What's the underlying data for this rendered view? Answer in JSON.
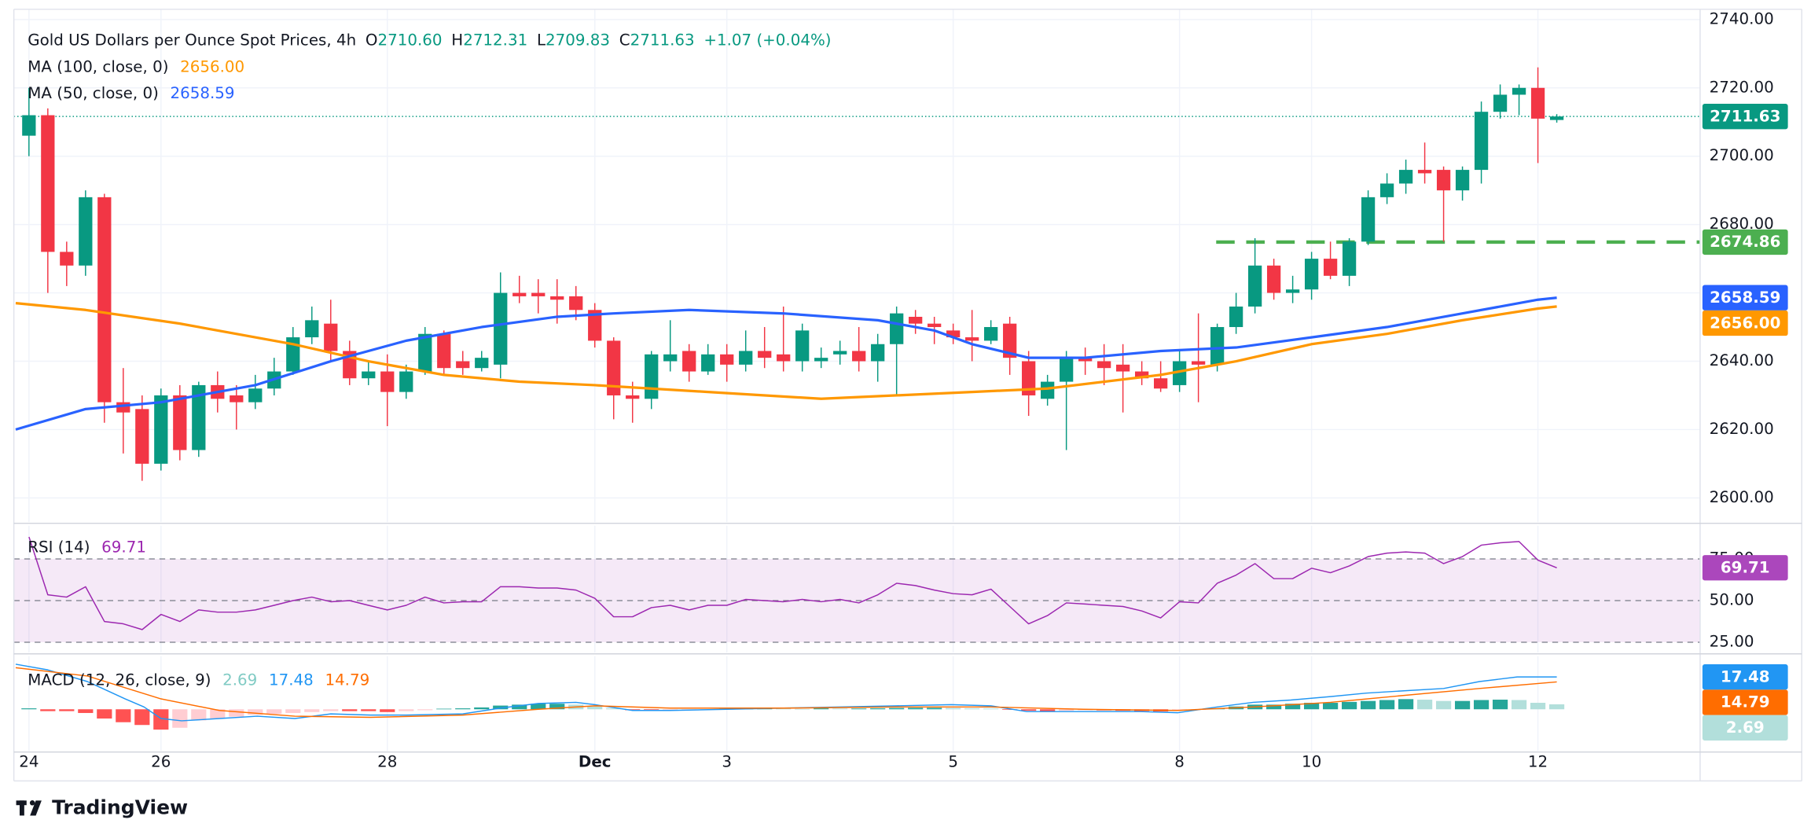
{
  "chart_data": {
    "type": "candlestick",
    "title": "Gold US Dollars per Ounce Spot Prices, 4h",
    "ohlc_header": [
      {
        "label": "O",
        "value": "2710.60"
      },
      {
        "label": "H",
        "value": "2712.31"
      },
      {
        "label": "L",
        "value": "2709.83"
      },
      {
        "label": "C",
        "value": "2711.63"
      }
    ],
    "change": "+1.07 (+0.04%)",
    "candles": {
      "up_color": "#089981",
      "down_color": "#f23645",
      "open": [
        2706,
        2712,
        2672,
        2668,
        2688,
        2628,
        2626,
        2610,
        2630,
        2614,
        2633,
        2630,
        2628,
        2632,
        2637,
        2647,
        2651,
        2643,
        2635,
        2637,
        2631,
        2637,
        2648,
        2640,
        2638,
        2639,
        2660,
        2660,
        2659,
        2659,
        2655,
        2646,
        2630,
        2629,
        2640,
        2643,
        2637,
        2642,
        2639,
        2643,
        2642,
        2640,
        2640,
        2642,
        2643,
        2640,
        2645,
        2653,
        2651,
        2649,
        2647,
        2646,
        2651,
        2640,
        2629,
        2634,
        2641,
        2640,
        2639,
        2637,
        2635,
        2633,
        2640,
        2639,
        2650,
        2656,
        2668,
        2660,
        2661,
        2670,
        2665,
        2675,
        2688,
        2692,
        2696,
        2696,
        2690,
        2696,
        2713,
        2718,
        2720,
        2710.6
      ],
      "high": [
        2720,
        2714,
        2675,
        2690,
        2689,
        2638,
        2630,
        2632,
        2633,
        2634,
        2637,
        2633,
        2636,
        2641,
        2650,
        2656,
        2658,
        2646,
        2640,
        2642,
        2639,
        2650,
        2649,
        2643,
        2643,
        2666,
        2665,
        2664,
        2664,
        2662,
        2657,
        2647,
        2634,
        2643,
        2652,
        2645,
        2645,
        2645,
        2649,
        2650,
        2656,
        2651,
        2644,
        2646,
        2650,
        2648,
        2656,
        2655,
        2653,
        2651,
        2655,
        2652,
        2653,
        2643,
        2636,
        2643,
        2644,
        2645,
        2645,
        2640,
        2640,
        2643,
        2654,
        2651,
        2660,
        2676,
        2670,
        2665,
        2672,
        2675,
        2676,
        2690,
        2695,
        2699,
        2704,
        2697,
        2697,
        2716,
        2721,
        2721,
        2726,
        2712.31
      ],
      "low": [
        2700,
        2660,
        2662,
        2665,
        2622,
        2613,
        2605,
        2608,
        2611,
        2612,
        2625,
        2620,
        2626,
        2630,
        2636,
        2645,
        2640,
        2633,
        2633,
        2621,
        2629,
        2636,
        2636,
        2636,
        2637,
        2635,
        2657,
        2654,
        2651,
        2652,
        2644,
        2623,
        2622,
        2626,
        2637,
        2634,
        2636,
        2634,
        2637,
        2638,
        2637,
        2637,
        2638,
        2639,
        2637,
        2634,
        2630,
        2648,
        2645,
        2645,
        2640,
        2645,
        2636,
        2624,
        2627,
        2614,
        2636,
        2633,
        2625,
        2633,
        2631,
        2631,
        2628,
        2637,
        2648,
        2654,
        2658,
        2657,
        2658,
        2664,
        2662,
        2674,
        2686,
        2689,
        2692,
        2675,
        2687,
        2692,
        2711,
        2712,
        2698,
        2709.83
      ],
      "close": [
        2712,
        2672,
        2668,
        2688,
        2628,
        2625,
        2610,
        2630,
        2614,
        2633,
        2629,
        2628,
        2632,
        2637,
        2647,
        2652,
        2643,
        2635,
        2637,
        2631,
        2637,
        2648,
        2638,
        2638,
        2641,
        2660,
        2659,
        2659,
        2658,
        2655,
        2646,
        2630,
        2629,
        2642,
        2642,
        2637,
        2642,
        2639,
        2643,
        2641,
        2640,
        2649,
        2641,
        2643,
        2640,
        2645,
        2654,
        2651,
        2650,
        2647,
        2646,
        2650,
        2641,
        2630,
        2634,
        2641,
        2640,
        2638,
        2637,
        2635,
        2632,
        2640,
        2639,
        2650,
        2656,
        2668,
        2660,
        2661,
        2670,
        2665,
        2675,
        2688,
        2692,
        2696,
        2695,
        2690,
        2696,
        2713,
        2718,
        2720,
        2711,
        2711.63
      ]
    },
    "xlim": [
      -0.8,
      88.6
    ],
    "xticks": [
      {
        "value": 0,
        "label": "24"
      },
      {
        "value": 7,
        "label": "26"
      },
      {
        "value": 19,
        "label": "28"
      },
      {
        "value": 30,
        "label": "Dec"
      },
      {
        "value": 37,
        "label": "3"
      },
      {
        "value": 49,
        "label": "5"
      },
      {
        "value": 61,
        "label": "8"
      },
      {
        "value": 68,
        "label": "10"
      },
      {
        "value": 80,
        "label": "12"
      }
    ],
    "ylim": [
      2592.9,
      2743.0
    ],
    "yticks": [
      {
        "value": 2600,
        "label": "2600.00"
      },
      {
        "value": 2620,
        "label": "2620.00"
      },
      {
        "value": 2640,
        "label": "2640.00"
      },
      {
        "value": 2660,
        "label": "2660.00"
      },
      {
        "value": 2680,
        "label": "2680.00"
      },
      {
        "value": 2700,
        "label": "2700.00"
      },
      {
        "value": 2720,
        "label": "2720.00"
      },
      {
        "value": 2740,
        "label": "2740.00"
      }
    ],
    "grid": true,
    "moving_averages": [
      {
        "name": "MA (100, close, 0)",
        "color": "#ff9800",
        "value": 2656.0,
        "value_label": "2656.00",
        "x": [
          -0.7,
          3,
          8,
          14,
          18,
          22,
          26,
          30,
          36,
          42,
          50,
          54,
          60,
          64,
          68,
          72,
          76,
          80,
          81
        ],
        "values": [
          2657,
          2655,
          2651,
          2645,
          2640,
          2636,
          2634,
          2633,
          2631,
          2629,
          2631,
          2632,
          2636,
          2640,
          2645,
          2648,
          2652,
          2655.4,
          2656.0
        ]
      },
      {
        "name": "MA (50, close, 0)",
        "color": "#2962ff",
        "value": 2658.59,
        "value_label": "2658.59",
        "x": [
          -0.7,
          3,
          7,
          12,
          16,
          20,
          24,
          28,
          31,
          35,
          40,
          45,
          48,
          50,
          53,
          56,
          60,
          64,
          68,
          72,
          76,
          80,
          81
        ],
        "values": [
          2620,
          2626,
          2628,
          2633,
          2640,
          2646,
          2650,
          2653,
          2654,
          2655,
          2654,
          2652,
          2649,
          2645,
          2641,
          2641,
          2643,
          2644,
          2647,
          2650,
          2654,
          2658,
          2658.59
        ]
      }
    ],
    "last_price": {
      "value": 2711.63,
      "label": "2711.63",
      "color": "#089981"
    },
    "level": {
      "value": 2674.86,
      "label": "2674.86",
      "color": "#4caf50"
    },
    "rsi": {
      "name": "RSI (14)",
      "color": "#9c27b0",
      "value_label": "69.71",
      "ylim": [
        18.75,
        95
      ],
      "yticks": [
        {
          "value": 25,
          "label": "25.00"
        },
        {
          "value": 50,
          "label": "50.00"
        },
        {
          "value": 75,
          "label": "75.00"
        }
      ],
      "values": [
        88.2,
        53.5,
        52.1,
        58.3,
        37.5,
        36.1,
        32.6,
        41.7,
        37.5,
        44.4,
        43.1,
        43.1,
        44.4,
        47.2,
        50,
        52.1,
        49.3,
        50,
        47.2,
        44.4,
        47.2,
        52.1,
        48.6,
        49.3,
        49.3,
        58.3,
        58.3,
        57.6,
        57.6,
        56.3,
        51.4,
        40.3,
        40.3,
        45.8,
        47.2,
        44.4,
        47.2,
        47.2,
        50.7,
        50,
        49.3,
        50.7,
        49.3,
        50.7,
        48.6,
        53.5,
        60.4,
        59,
        56.3,
        54.2,
        53.5,
        56.9,
        46.5,
        36.1,
        41,
        48.6,
        47.9,
        47.2,
        46.5,
        43.8,
        39.6,
        49.3,
        48.6,
        60.4,
        65.3,
        72.2,
        63.2,
        63.2,
        69.4,
        66.7,
        70.8,
        76.4,
        78.5,
        79.2,
        78.5,
        72.2,
        76.4,
        83.3,
        84.7,
        85.4,
        74.3,
        69.71
      ]
    },
    "macd": {
      "name": "MACD (12, 26, close, 9)",
      "ylim": [
        -22.5,
        28.75
      ],
      "histogram": {
        "value_label": "2.69",
        "colors": {
          "up_rising": "#26a69a",
          "up_falling": "#b2dfdb",
          "down_falling": "#ff5252",
          "down_rising": "#ffcdd2"
        },
        "values": [
          0.5,
          -1,
          -1,
          -2,
          -5,
          -7,
          -8.5,
          -11,
          -10,
          -6,
          -5,
          -4,
          -3,
          -2.5,
          -2,
          -1.5,
          -1,
          -1,
          -1,
          -1.5,
          -1,
          -0.5,
          0.3,
          0.5,
          1,
          2,
          2.5,
          3,
          3,
          2.5,
          1.5,
          0.5,
          -0.5,
          -0.8,
          -0.5,
          -0.3,
          -0.2,
          0.2,
          0.3,
          0.4,
          0.3,
          0.2,
          0.5,
          0.4,
          0.4,
          0.5,
          0.7,
          0.8,
          0.8,
          0.7,
          0.5,
          0.4,
          -0.2,
          -0.8,
          -1,
          -0.8,
          -0.5,
          -0.6,
          -0.8,
          -1,
          -1.2,
          -0.8,
          -0.3,
          0.5,
          1.5,
          2.5,
          2.5,
          3,
          3.5,
          3.5,
          4,
          4.5,
          5,
          5.5,
          5.2,
          4.5,
          4.5,
          5,
          5.2,
          5,
          3.5,
          2.69
        ]
      },
      "macd_line": {
        "color": "#2196f3",
        "value_label": "17.48",
        "x": [
          -0.7,
          1,
          3.1,
          5.1,
          6.1,
          7,
          8.1,
          10.1,
          12.1,
          14.1,
          16,
          18.1,
          20,
          23,
          25,
          27,
          29,
          30,
          32,
          34,
          37,
          40,
          43,
          46,
          48.9,
          51,
          52.9,
          55.9,
          58.9,
          60.9,
          63,
          64.9,
          66.9,
          69,
          70.9,
          72.9,
          75,
          76.9,
          78.9,
          81
        ],
        "values": [
          24.4,
          21.3,
          15,
          5.6,
          1.25,
          -5,
          -6.25,
          -5,
          -3.75,
          -5,
          -2.5,
          -3.1,
          -3.1,
          -2.5,
          0.6,
          3.1,
          3.75,
          2.5,
          -0.6,
          -0.6,
          0,
          0.6,
          1.25,
          1.9,
          2.5,
          1.9,
          -1.25,
          -1.25,
          -1.25,
          -1.9,
          1.25,
          3.75,
          5,
          6.9,
          8.75,
          10,
          11.25,
          15,
          17.5,
          17.48
        ]
      },
      "signal_line": {
        "color": "#ff6d00",
        "value_label": "14.79",
        "x": [
          -0.7,
          3.1,
          7,
          10.1,
          14.1,
          18.1,
          23,
          27,
          30,
          34,
          40,
          46,
          51,
          55.9,
          60.9,
          64.9,
          69,
          72.9,
          76.9,
          81
        ],
        "values": [
          22.5,
          18,
          5.6,
          -0.6,
          -3.75,
          -4.4,
          -3.1,
          0,
          1.9,
          0.6,
          0.6,
          1.25,
          1.25,
          0,
          -0.6,
          1.25,
          3.75,
          7.5,
          11.25,
          14.79
        ]
      }
    }
  },
  "footer": "TradingView"
}
